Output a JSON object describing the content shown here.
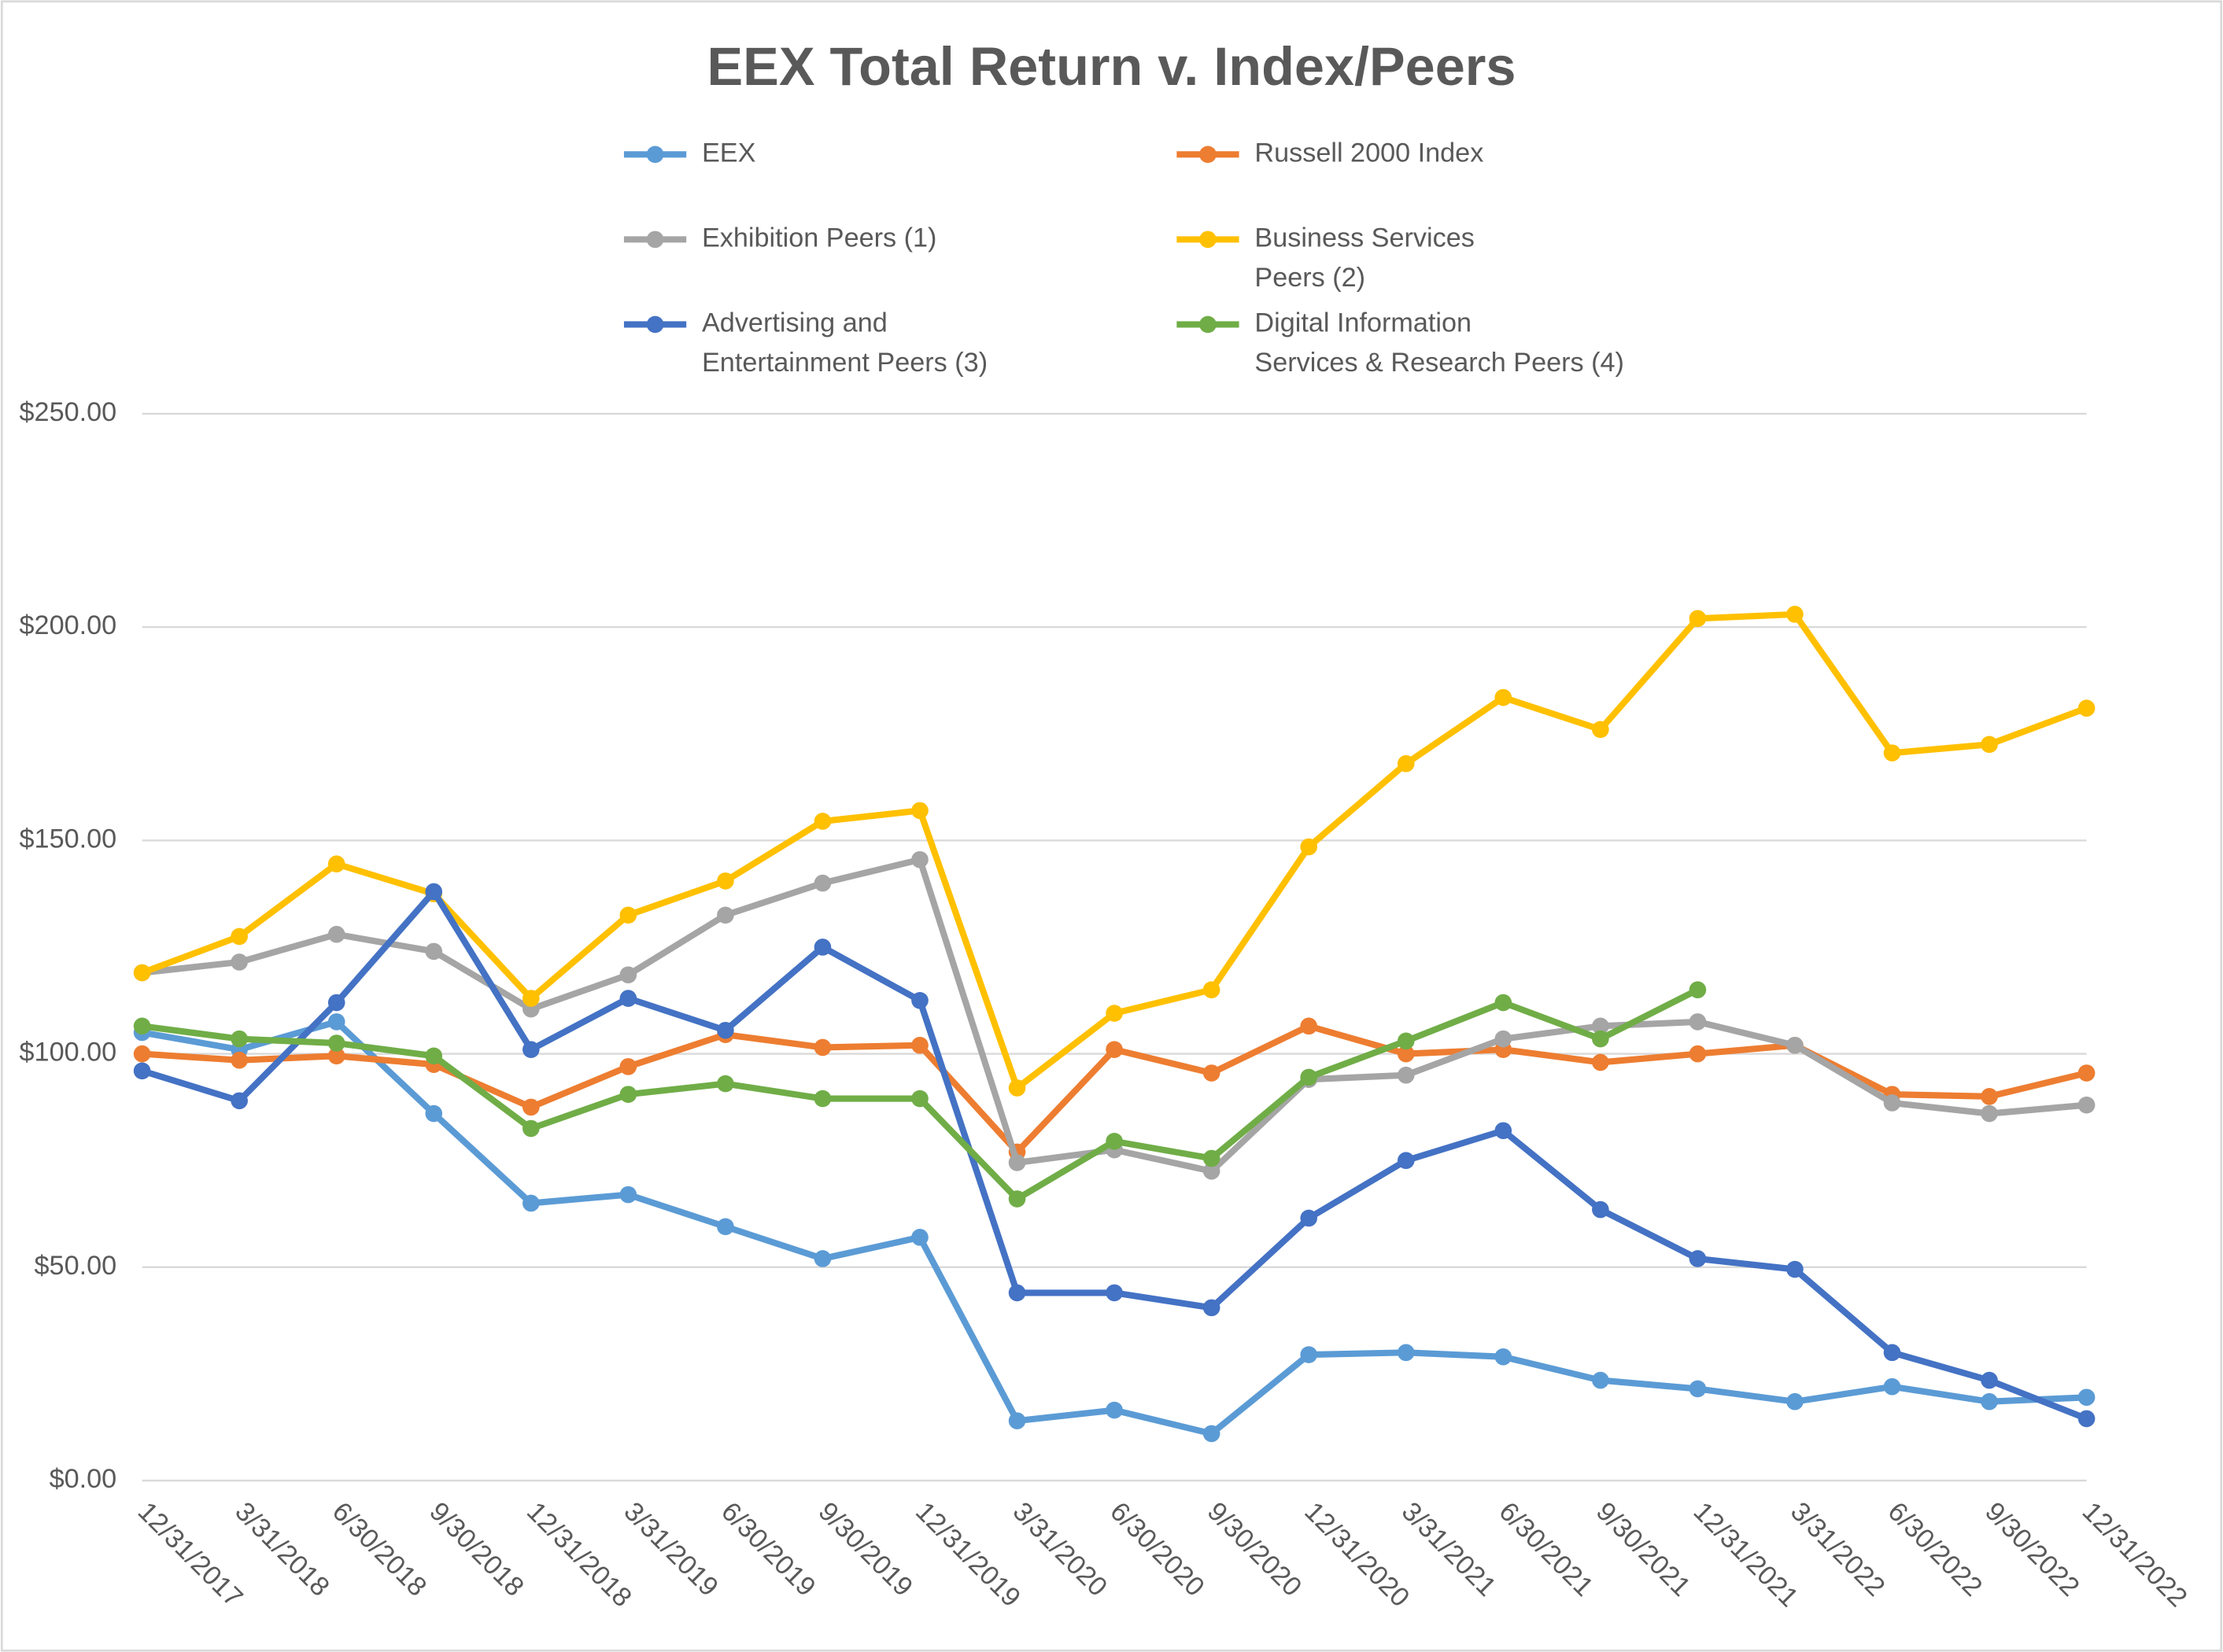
{
  "chart_data": {
    "type": "line",
    "title": "EEX Total Return v. Index/Peers",
    "categories": [
      "12/31/2017",
      "3/31/2018",
      "6/30/2018",
      "9/30/2018",
      "12/31/2018",
      "3/31/2019",
      "6/30/2019",
      "9/30/2019",
      "12/31/2019",
      "3/31/2020",
      "6/30/2020",
      "9/30/2020",
      "12/31/2020",
      "3/31/2021",
      "6/30/2021",
      "9/30/2021",
      "12/31/2021",
      "3/31/2022",
      "6/30/2022",
      "9/30/2022",
      "12/31/2022"
    ],
    "ylim": [
      0,
      250
    ],
    "yticks": [
      {
        "value": 0,
        "label": "$0.00"
      },
      {
        "value": 50,
        "label": "$50.00"
      },
      {
        "value": 100,
        "label": "$100.00"
      },
      {
        "value": 150,
        "label": "$150.00"
      },
      {
        "value": 200,
        "label": "$200.00"
      },
      {
        "value": 250,
        "label": "$250.00"
      }
    ],
    "grid": true,
    "legend": "top",
    "series": [
      {
        "name": "EEX",
        "color": "#5b9bd5",
        "values": [
          105,
          101,
          107.5,
          86,
          65,
          67,
          59.5,
          52,
          57,
          14,
          16.5,
          11,
          29.5,
          30,
          29,
          23.5,
          21.5,
          18.5,
          22,
          18.5,
          19.5
        ]
      },
      {
        "name": "Russell 2000 Index",
        "color": "#ed7d31",
        "values": [
          100,
          98.5,
          99.5,
          97.5,
          87.5,
          97,
          104.5,
          101.5,
          102,
          77,
          101,
          95.5,
          106.5,
          100,
          101,
          98,
          100,
          102,
          90.5,
          90,
          95.5
        ]
      },
      {
        "name": "Exhibition Peers (1)",
        "color": "#a5a5a5",
        "values": [
          119,
          121.5,
          128,
          124,
          110.5,
          118.5,
          132.5,
          140,
          145.5,
          74.5,
          77.5,
          72.5,
          94,
          95,
          103.5,
          106.5,
          107.5,
          102,
          88.5,
          86,
          88
        ]
      },
      {
        "name": "Business Services Peers (2)",
        "color": "#ffc000",
        "values": [
          119,
          127.5,
          144.5,
          137.5,
          113,
          132.5,
          140.5,
          154.5,
          157,
          92,
          109.5,
          115,
          148.5,
          168,
          183.5,
          176,
          202,
          203,
          170.5,
          172.5,
          181
        ]
      },
      {
        "name": "Advertising and Entertainment Peers (3)",
        "color": "#4472c4",
        "values": [
          96,
          89,
          112,
          138,
          101,
          113,
          105.5,
          125,
          112.5,
          44,
          44,
          40.5,
          61.5,
          75,
          82,
          63.5,
          52,
          49.5,
          30,
          23.5,
          14.5
        ]
      },
      {
        "name": "Digital Information Services & Research Peers (4)",
        "color": "#70ad47",
        "values": [
          106.5,
          103.5,
          102.5,
          99.5,
          82.5,
          90.5,
          93,
          89.5,
          89.5,
          66,
          79.5,
          75.5,
          94.5,
          103,
          112,
          103.5,
          115,
          null,
          null,
          null,
          null
        ]
      }
    ]
  }
}
